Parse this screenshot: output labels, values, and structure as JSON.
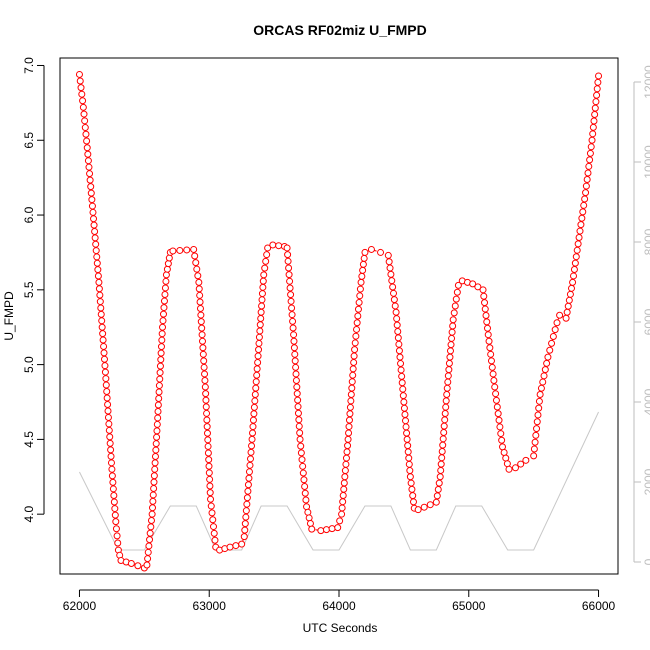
{
  "chart_data": {
    "type": "line",
    "title": "ORCAS RF02miz U_FMPD",
    "xlabel": "UTC Seconds",
    "ylabel": "U_FMPD",
    "xlim": [
      61850,
      66150
    ],
    "ylim": [
      3.6,
      7.05
    ],
    "y2lim": [
      -300,
      12600
    ],
    "x_ticks": [
      62000,
      63000,
      64000,
      65000,
      66000
    ],
    "y_ticks": [
      4.0,
      4.5,
      5.0,
      5.5,
      6.0,
      6.5,
      7.0
    ],
    "y_tick_labels": [
      "4.0",
      "4.5",
      "5.0",
      "5.5",
      "6.0",
      "6.5",
      "7.0"
    ],
    "y2_ticks": [
      0,
      2000,
      4000,
      6000,
      8000,
      10000,
      12000
    ],
    "grid": false,
    "colors": {
      "u_fmpd": "#ff0000",
      "altitude": "#c8c8c8",
      "axis": "#000000",
      "right_axis": "#bebebe"
    },
    "series": [
      {
        "axis": "left",
        "style": "points-and-dashed-line",
        "anchors": [
          [
            62000,
            6.94
          ],
          [
            62030,
            6.72
          ],
          [
            62060,
            6.45
          ],
          [
            62100,
            6.06
          ],
          [
            62150,
            5.55
          ],
          [
            62200,
            4.95
          ],
          [
            62250,
            4.3
          ],
          [
            62280,
            3.95
          ],
          [
            62300,
            3.76
          ],
          [
            62320,
            3.69
          ],
          [
            62400,
            3.67
          ],
          [
            62500,
            3.64
          ],
          [
            62520,
            3.66
          ],
          [
            62560,
            4.0
          ],
          [
            62600,
            4.6
          ],
          [
            62640,
            5.25
          ],
          [
            62670,
            5.6
          ],
          [
            62700,
            5.75
          ],
          [
            62720,
            5.76
          ],
          [
            62880,
            5.77
          ],
          [
            62920,
            5.55
          ],
          [
            62970,
            4.85
          ],
          [
            63010,
            4.1
          ],
          [
            63050,
            3.78
          ],
          [
            63080,
            3.76
          ],
          [
            63160,
            3.78
          ],
          [
            63250,
            3.8
          ],
          [
            63270,
            3.85
          ],
          [
            63330,
            4.5
          ],
          [
            63380,
            5.1
          ],
          [
            63420,
            5.6
          ],
          [
            63450,
            5.78
          ],
          [
            63490,
            5.8
          ],
          [
            63580,
            5.79
          ],
          [
            63600,
            5.78
          ],
          [
            63650,
            5.2
          ],
          [
            63700,
            4.5
          ],
          [
            63750,
            4.05
          ],
          [
            63790,
            3.9
          ],
          [
            63860,
            3.89
          ],
          [
            63990,
            3.91
          ],
          [
            64020,
            4.0
          ],
          [
            64070,
            4.5
          ],
          [
            64120,
            5.1
          ],
          [
            64170,
            5.55
          ],
          [
            64200,
            5.75
          ],
          [
            64250,
            5.77
          ],
          [
            64320,
            5.75
          ],
          [
            64380,
            5.73
          ],
          [
            64440,
            5.35
          ],
          [
            64500,
            4.75
          ],
          [
            64550,
            4.25
          ],
          [
            64580,
            4.04
          ],
          [
            64610,
            4.03
          ],
          [
            64750,
            4.08
          ],
          [
            64780,
            4.25
          ],
          [
            64830,
            4.8
          ],
          [
            64880,
            5.3
          ],
          [
            64920,
            5.53
          ],
          [
            64950,
            5.56
          ],
          [
            65030,
            5.54
          ],
          [
            65110,
            5.5
          ],
          [
            65150,
            5.2
          ],
          [
            65200,
            4.85
          ],
          [
            65260,
            4.45
          ],
          [
            65310,
            4.3
          ],
          [
            65360,
            4.31
          ],
          [
            65440,
            4.36
          ],
          [
            65500,
            4.39
          ],
          [
            65550,
            4.8
          ],
          [
            65610,
            5.05
          ],
          [
            65680,
            5.28
          ],
          [
            65700,
            5.33
          ],
          [
            65750,
            5.31
          ],
          [
            65800,
            5.55
          ],
          [
            65850,
            5.85
          ],
          [
            65900,
            6.15
          ],
          [
            65950,
            6.5
          ],
          [
            66000,
            6.93
          ]
        ]
      },
      {
        "axis": "right",
        "style": "line",
        "points": [
          [
            62000,
            2250
          ],
          [
            62300,
            300
          ],
          [
            62500,
            300
          ],
          [
            62700,
            1400
          ],
          [
            62900,
            1400
          ],
          [
            63050,
            300
          ],
          [
            63250,
            300
          ],
          [
            63400,
            1400
          ],
          [
            63600,
            1400
          ],
          [
            63800,
            300
          ],
          [
            64000,
            300
          ],
          [
            64200,
            1400
          ],
          [
            64400,
            1400
          ],
          [
            64550,
            300
          ],
          [
            64750,
            300
          ],
          [
            64900,
            1400
          ],
          [
            65100,
            1400
          ],
          [
            65300,
            300
          ],
          [
            65500,
            300
          ],
          [
            66000,
            3750
          ]
        ]
      }
    ]
  }
}
